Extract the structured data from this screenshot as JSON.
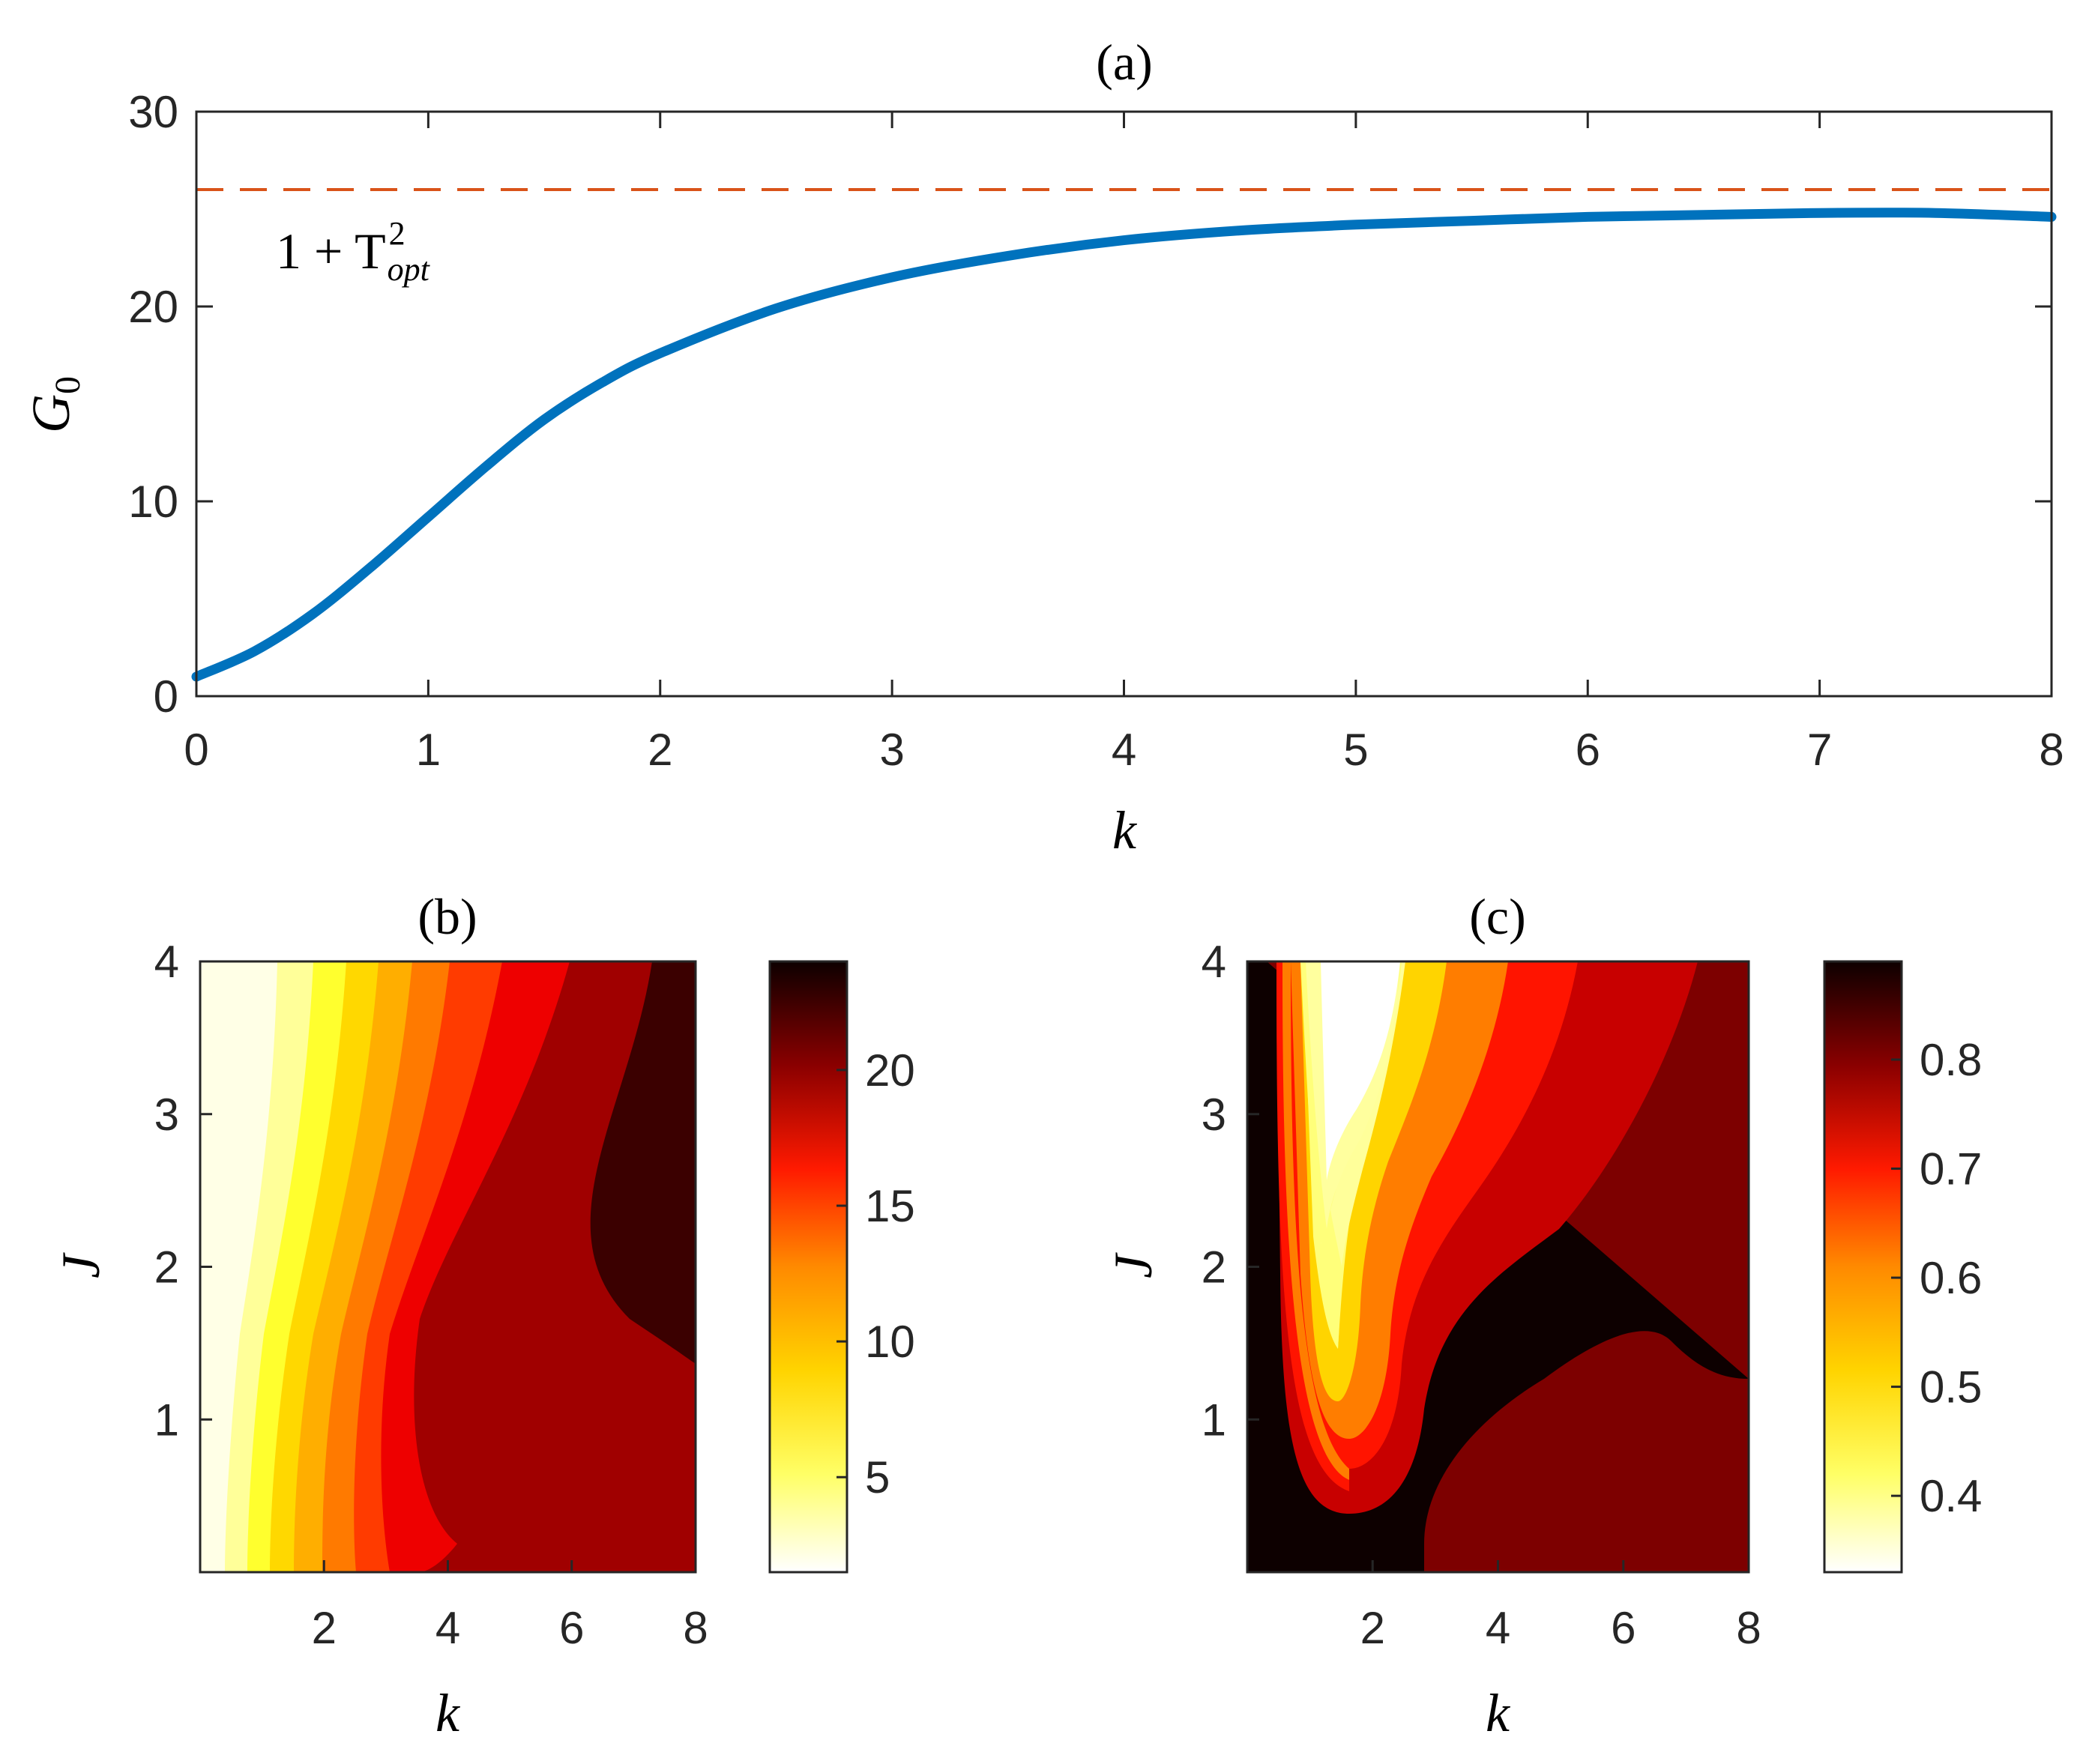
{
  "chart_data": [
    {
      "id": "a",
      "type": "line",
      "title": "(a)",
      "xlabel": "k",
      "ylabel": "G_0",
      "xlim": [
        0,
        8
      ],
      "ylim": [
        0,
        30
      ],
      "xticks": [
        "0",
        "1",
        "2",
        "3",
        "4",
        "5",
        "6",
        "7",
        "8"
      ],
      "yticks": [
        "0",
        "10",
        "20",
        "30"
      ],
      "series": [
        {
          "name": "G0",
          "color": "#0072BD",
          "x": [
            0,
            0.25,
            0.5,
            0.75,
            1,
            1.25,
            1.5,
            1.75,
            2,
            2.5,
            3,
            3.5,
            4,
            4.5,
            5,
            5.5,
            6,
            6.5,
            7,
            7.5,
            8
          ],
          "y": [
            1.0,
            2.3,
            4.2,
            6.6,
            9.2,
            11.8,
            14.2,
            16.1,
            17.6,
            19.9,
            21.5,
            22.6,
            23.4,
            23.9,
            24.2,
            24.4,
            24.6,
            24.7,
            24.8,
            24.8,
            24.6
          ]
        }
      ],
      "reference_line": {
        "y": 26,
        "color": "#D95319",
        "style": "dashed"
      },
      "annotation": {
        "base": "1 + T",
        "sup": "2",
        "sub": "opt"
      }
    },
    {
      "id": "b",
      "type": "heatmap",
      "title": "(b)",
      "xlabel": "k",
      "ylabel": "J",
      "xlim": [
        0,
        8
      ],
      "ylim": [
        0,
        4
      ],
      "xticks": [
        "2",
        "4",
        "6",
        "8"
      ],
      "yticks": [
        "1",
        "2",
        "3",
        "4"
      ],
      "colorbar": {
        "min": 1.5,
        "max": 24,
        "ticks": [
          "5",
          "10",
          "15",
          "20"
        ],
        "tick_values": [
          5,
          10,
          15,
          20
        ]
      }
    },
    {
      "id": "c",
      "type": "heatmap",
      "title": "(c)",
      "xlabel": "k",
      "ylabel": "J",
      "xlim": [
        0,
        8
      ],
      "ylim": [
        0,
        4
      ],
      "xticks": [
        "2",
        "4",
        "6",
        "8"
      ],
      "yticks": [
        "1",
        "2",
        "3",
        "4"
      ],
      "colorbar": {
        "min": 0.33,
        "max": 0.89,
        "ticks": [
          "0.4",
          "0.5",
          "0.6",
          "0.7",
          "0.8"
        ],
        "tick_values": [
          0.4,
          0.5,
          0.6,
          0.7,
          0.8
        ]
      }
    }
  ]
}
